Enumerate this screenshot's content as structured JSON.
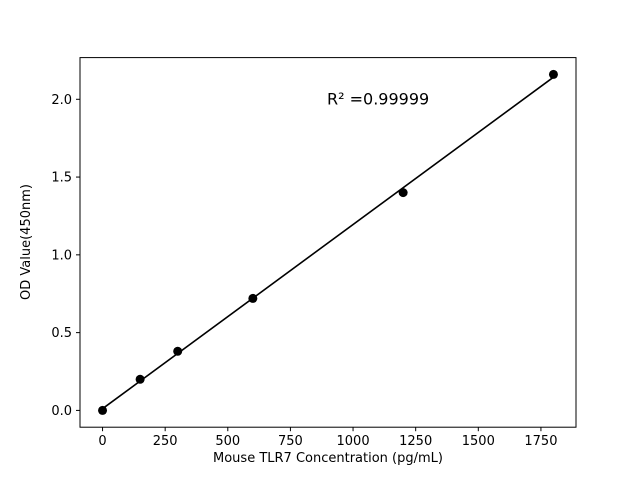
{
  "figure": {
    "background": "#ffffff"
  },
  "chart_data": {
    "type": "scatter",
    "title": "",
    "xlabel": "Mouse TLR7 Concentration (pg/mL)",
    "ylabel": "OD Value(450nm)",
    "x": [
      0,
      150,
      300,
      600,
      1200,
      1800
    ],
    "y": [
      0.0,
      0.2,
      0.38,
      0.72,
      1.4,
      2.16
    ],
    "fit_line": {
      "x": [
        0,
        1800
      ],
      "y": [
        0.011,
        2.142
      ]
    },
    "annotation": {
      "text": "R² =0.99999",
      "x": 1100,
      "y": 2.0
    },
    "xlim": [
      -90,
      1890
    ],
    "ylim": [
      -0.108,
      2.268
    ],
    "xticks": [
      0,
      250,
      500,
      750,
      1000,
      1250,
      1500,
      1750
    ],
    "xtick_labels": [
      "0",
      "250",
      "500",
      "750",
      "1000",
      "1250",
      "1500",
      "1750"
    ],
    "yticks": [
      0,
      0.5,
      1.0,
      1.5,
      2.0
    ],
    "ytick_labels": [
      "0.0",
      "0.5",
      "1.0",
      "1.5",
      "2.0"
    ],
    "grid": false,
    "legend_position": "none",
    "marker": "circle",
    "marker_color": "#000000",
    "line_color": "#000000",
    "frame_color": "#000000"
  }
}
